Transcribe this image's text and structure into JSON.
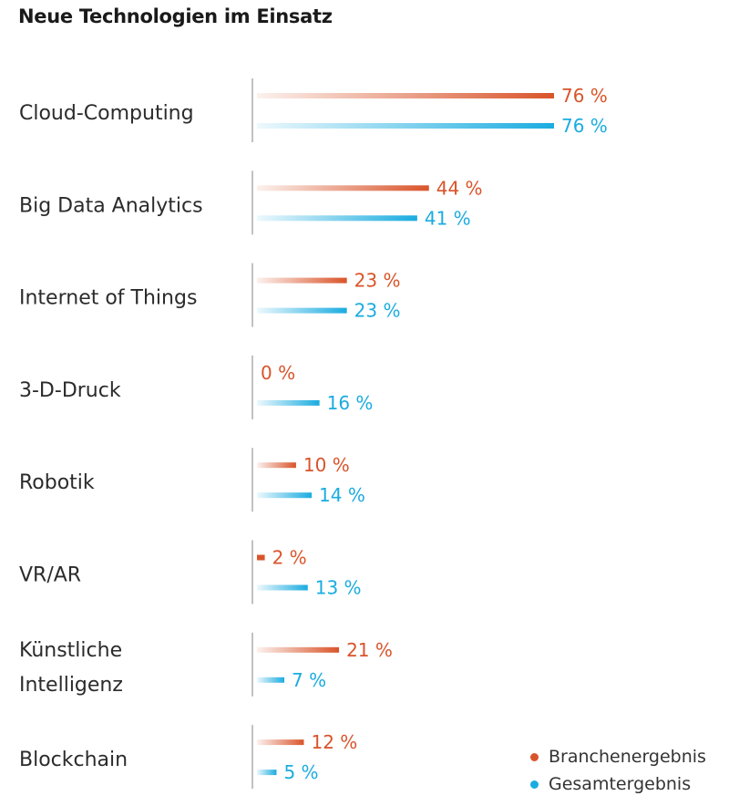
{
  "chart_data": {
    "type": "bar",
    "orientation": "horizontal",
    "title": "Neue Technologien im Einsatz",
    "xlabel": "",
    "ylabel": "",
    "xlim": [
      0,
      80
    ],
    "grid": false,
    "legend_position": "bottom-right",
    "categories": [
      [
        "Cloud-Computing"
      ],
      [
        "Big Data Analytics"
      ],
      [
        "Internet of Things"
      ],
      [
        "3-D-Druck"
      ],
      [
        "Robotik"
      ],
      [
        "VR/AR"
      ],
      [
        "Künstliche",
        "Intelligenz"
      ],
      [
        "Blockchain"
      ]
    ],
    "series": [
      {
        "name": "Branchenergebnis",
        "color": "#d9542a",
        "values": [
          76,
          44,
          23,
          0,
          10,
          2,
          21,
          12
        ],
        "labels": [
          "76 %",
          "44 %",
          "23 %",
          "0 %",
          "10 %",
          "2 %",
          "21 %",
          "12 %"
        ]
      },
      {
        "name": "Gesamtergebnis",
        "color": "#1aace0",
        "values": [
          76,
          41,
          23,
          16,
          14,
          13,
          7,
          5
        ],
        "labels": [
          "76 %",
          "41 %",
          "23 %",
          "16 %",
          "14 %",
          "13 %",
          "7 %",
          "5 %"
        ]
      }
    ]
  }
}
